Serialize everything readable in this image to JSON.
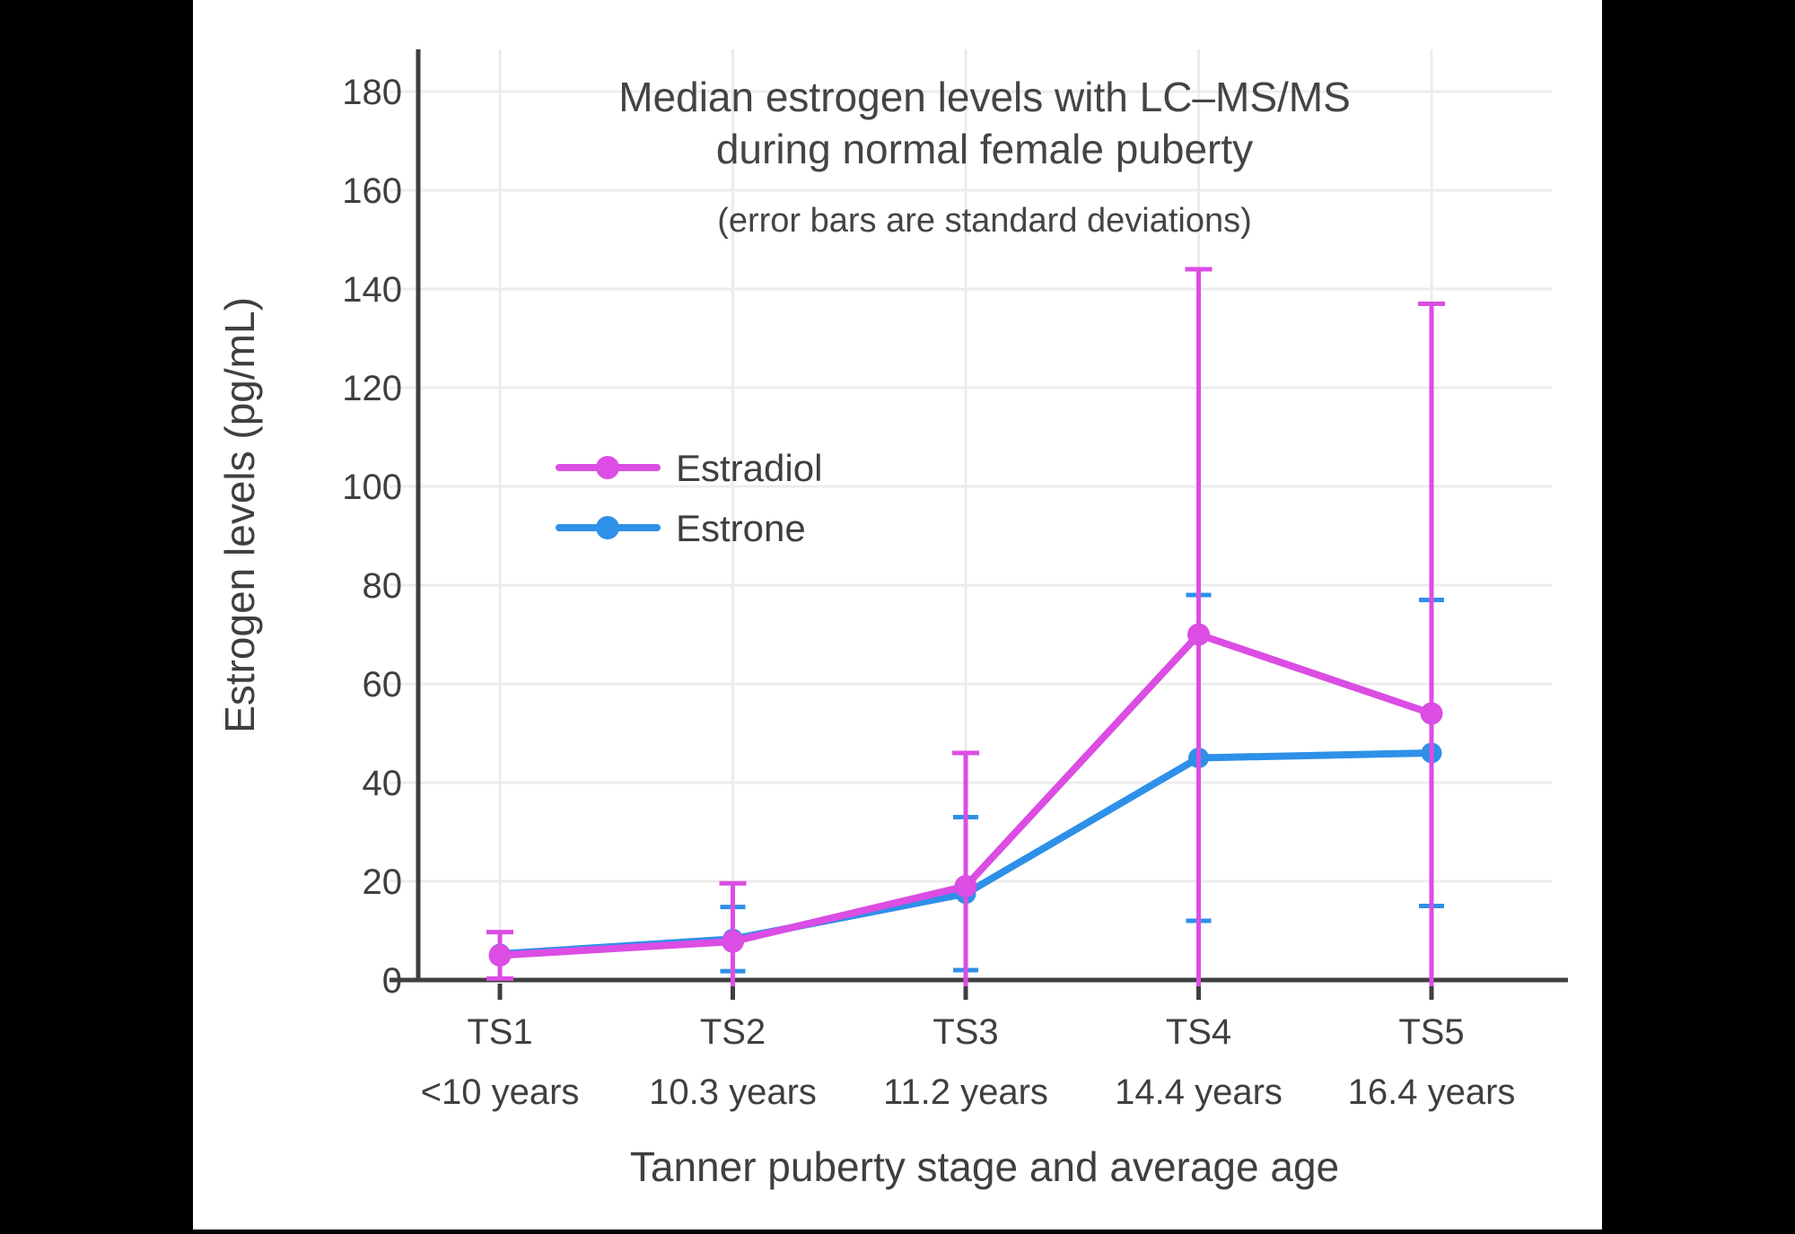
{
  "chart_data": {
    "type": "line",
    "title_lines": [
      "Median estrogen levels with LC–MS/MS",
      "during normal female puberty"
    ],
    "subtitle": "(error bars are standard deviations)",
    "xlabel": "Tanner puberty stage and average age",
    "ylabel": "Estrogen levels (pg/mL)",
    "categories": [
      "TS1",
      "TS2",
      "TS3",
      "TS4",
      "TS5"
    ],
    "category_sublabels": [
      "<10 years",
      "10.3 years",
      "11.2 years",
      "14.4 years",
      "16.4 years"
    ],
    "yticks": [
      0,
      20,
      40,
      60,
      80,
      100,
      120,
      140,
      160,
      180
    ],
    "ylim": [
      0,
      190
    ],
    "grid": true,
    "error_bar_meaning": "standard deviations",
    "error_bars_clipped_at_zero": true,
    "legend_position": "inside-upper-left",
    "series": [
      {
        "name": "Estradiol",
        "color": "#DB4DE3",
        "values": [
          5,
          7.8,
          19,
          70,
          54
        ],
        "sd": [
          4.7,
          11.8,
          27,
          74,
          83
        ],
        "error_top": [
          9.7,
          19.6,
          46,
          144,
          137
        ],
        "error_bottom_visible": [
          0.3,
          null,
          null,
          null,
          null
        ]
      },
      {
        "name": "Estrone",
        "color": "#2E90E8",
        "values": [
          5.3,
          8.3,
          17.5,
          45,
          46
        ],
        "sd": [
          null,
          6.5,
          15.5,
          33,
          31
        ],
        "error_top": [
          null,
          14.8,
          33,
          78,
          77
        ],
        "error_bottom_visible": [
          null,
          1.8,
          2,
          12,
          15
        ]
      }
    ]
  },
  "colors": {
    "background": "#ffffff",
    "pillarbox": "#000000",
    "axis": "#3F3F3F",
    "grid": "#ECECEC",
    "text": "#444444",
    "estradiol": "#DB4DE3",
    "estrone": "#2E90E8"
  }
}
